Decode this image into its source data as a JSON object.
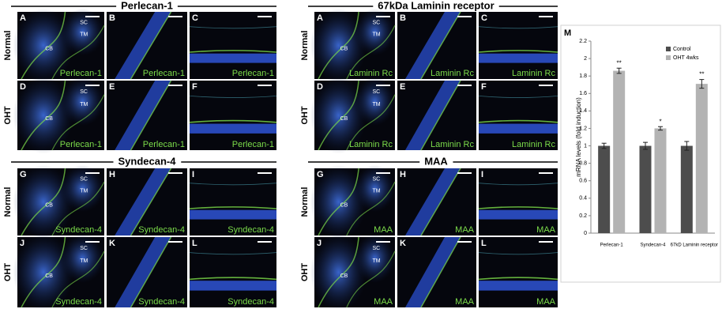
{
  "figure": {
    "sections": [
      {
        "title": "Perlecan-1",
        "rows": [
          {
            "label": "Normal",
            "panels": [
              {
                "letter": "A",
                "caption": "Perlecan-1",
                "annotations": [
                  "SC",
                  "TM",
                  "CB"
                ]
              },
              {
                "letter": "B",
                "caption": "Perlecan-1"
              },
              {
                "letter": "C",
                "caption": "Perlecan-1"
              }
            ]
          },
          {
            "label": "OHT",
            "panels": [
              {
                "letter": "D",
                "caption": "Perlecan-1",
                "annotations": [
                  "SC",
                  "TM",
                  "CB"
                ]
              },
              {
                "letter": "E",
                "caption": "Perlecan-1"
              },
              {
                "letter": "F",
                "caption": "Perlecan-1"
              }
            ]
          }
        ]
      },
      {
        "title": "Syndecan-4",
        "rows": [
          {
            "label": "Normal",
            "panels": [
              {
                "letter": "G",
                "caption": "Syndecan-4",
                "annotations": [
                  "SC",
                  "TM",
                  "CB"
                ]
              },
              {
                "letter": "H",
                "caption": "Syndecan-4"
              },
              {
                "letter": "I",
                "caption": "Syndecan-4"
              }
            ]
          },
          {
            "label": "OHT",
            "panels": [
              {
                "letter": "J",
                "caption": "Syndecan-4",
                "annotations": [
                  "SC",
                  "TM",
                  "CB"
                ]
              },
              {
                "letter": "K",
                "caption": "Syndecan-4"
              },
              {
                "letter": "L",
                "caption": "Syndecan-4"
              }
            ]
          }
        ]
      },
      {
        "title": "67kDa Laminin receptor",
        "rows": [
          {
            "label": "Normal",
            "panels": [
              {
                "letter": "A",
                "caption": "Laminin Rc",
                "annotations": [
                  "SC",
                  "TM",
                  "CB"
                ]
              },
              {
                "letter": "B",
                "caption": "Laminin Rc"
              },
              {
                "letter": "C",
                "caption": "Laminin Rc"
              }
            ]
          },
          {
            "label": "OHT",
            "panels": [
              {
                "letter": "D",
                "caption": "Laminin Rc",
                "annotations": [
                  "SC",
                  "TM",
                  "CB"
                ]
              },
              {
                "letter": "E",
                "caption": "Laminin Rc"
              },
              {
                "letter": "F",
                "caption": "Laminin Rc"
              }
            ]
          }
        ]
      },
      {
        "title": "MAA",
        "rows": [
          {
            "label": "Normal",
            "panels": [
              {
                "letter": "G",
                "caption": "MAA",
                "annotations": [
                  "SC",
                  "TM",
                  "CB"
                ]
              },
              {
                "letter": "H",
                "caption": "MAA"
              },
              {
                "letter": "I",
                "caption": "MAA"
              }
            ]
          },
          {
            "label": "OHT",
            "panels": [
              {
                "letter": "J",
                "caption": "MAA",
                "annotations": [
                  "SC",
                  "TM",
                  "CB"
                ]
              },
              {
                "letter": "K",
                "caption": "MAA"
              },
              {
                "letter": "L",
                "caption": "MAA"
              }
            ]
          }
        ]
      }
    ]
  },
  "chart_data": {
    "type": "bar",
    "panel_letter": "M",
    "ylabel": "mRNA levels (fold induction)",
    "categories": [
      "Perlecan-1",
      "Syndecan-4",
      "67kD Laminin receptor"
    ],
    "series": [
      {
        "name": "Control",
        "color": "#4d4d4d",
        "values": [
          1,
          1,
          1
        ],
        "errors": [
          0.03,
          0.04,
          0.05
        ]
      },
      {
        "name": "OHT 4wks",
        "color": "#b3b3b3",
        "values": [
          1.86,
          1.2,
          1.71
        ],
        "errors": [
          0.03,
          0.02,
          0.05
        ],
        "value_labels": [
          "**",
          "*",
          "**"
        ]
      }
    ],
    "ylim": [
      0,
      2.2
    ],
    "yticks": [
      0,
      0.2,
      0.4,
      0.6,
      0.8,
      1,
      1.2,
      1.4,
      1.6,
      1.8,
      2,
      2.2
    ],
    "legend": "top-right"
  }
}
